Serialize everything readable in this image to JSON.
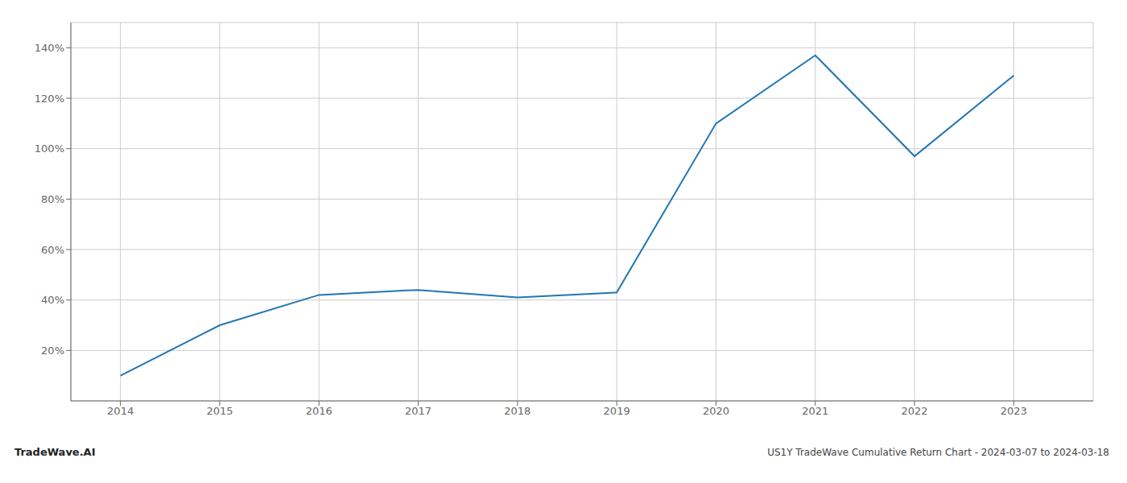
{
  "chart_data": {
    "type": "line",
    "title": "US1Y TradeWave Cumulative Return Chart - 2024-03-07 to 2024-03-18",
    "annotations": [
      "TradeWave.AI"
    ],
    "x": [
      2014,
      2015,
      2016,
      2017,
      2018,
      2019,
      2020,
      2021,
      2022,
      2023
    ],
    "values": [
      10,
      30,
      42,
      44,
      41,
      43,
      110,
      137,
      97,
      129
    ],
    "color": "#2076b4",
    "xlim": [
      2013.5,
      2023.8
    ],
    "xticks": [
      2014,
      2015,
      2016,
      2017,
      2018,
      2019,
      2020,
      2021,
      2022,
      2023
    ],
    "ylim": [
      0,
      150
    ],
    "yticks": [
      {
        "value": 20,
        "label": "20%"
      },
      {
        "value": 40,
        "label": "40%"
      },
      {
        "value": 60,
        "label": "60%"
      },
      {
        "value": 80,
        "label": "80%"
      },
      {
        "value": 100,
        "label": "100%"
      },
      {
        "value": 120,
        "label": "120%"
      },
      {
        "value": 140,
        "label": "140%"
      }
    ],
    "grid": true
  }
}
